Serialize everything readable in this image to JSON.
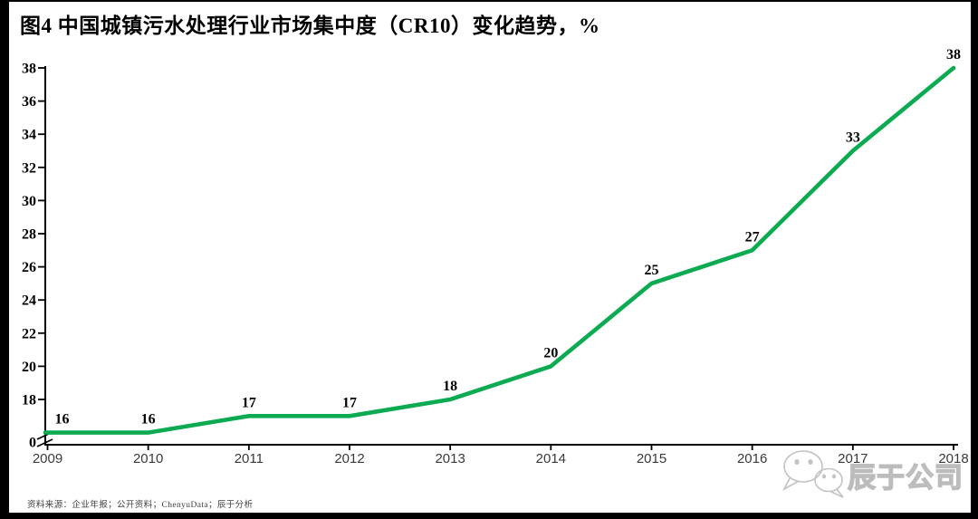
{
  "page": {
    "background": "#ffffff",
    "frame_color": "#000000"
  },
  "title": "图4 中国城镇污水处理行业市场集中度（CR10）变化趋势，%",
  "source_note": "资料来源：企业年报；公开资料；ChenyuData；辰于分析",
  "watermark": {
    "icon": "wechat-icon",
    "company": "辰于公司",
    "color": "#bcbcbc"
  },
  "chart_data": {
    "type": "line",
    "title": "中国城镇污水处理行业市场集中度（CR10）变化趋势",
    "unit": "%",
    "categories": [
      "2009",
      "2010",
      "2011",
      "2012",
      "2013",
      "2014",
      "2015",
      "2016",
      "2017",
      "2018"
    ],
    "series": [
      {
        "name": "CR10",
        "values": [
          16,
          16,
          17,
          17,
          18,
          20,
          25,
          27,
          33,
          38
        ]
      }
    ],
    "data_labels": true,
    "yticks": [
      0,
      18,
      20,
      22,
      24,
      26,
      28,
      30,
      32,
      34,
      36,
      38
    ],
    "ylim": [
      0,
      38
    ],
    "axis_break": true,
    "grid": false,
    "legend": "none",
    "line_color": "#0cab51",
    "axis_color": "#000000",
    "ytick_label_color": "#000000",
    "xtick_label_color": "#3a3a3a",
    "data_label_color": "#000000"
  }
}
